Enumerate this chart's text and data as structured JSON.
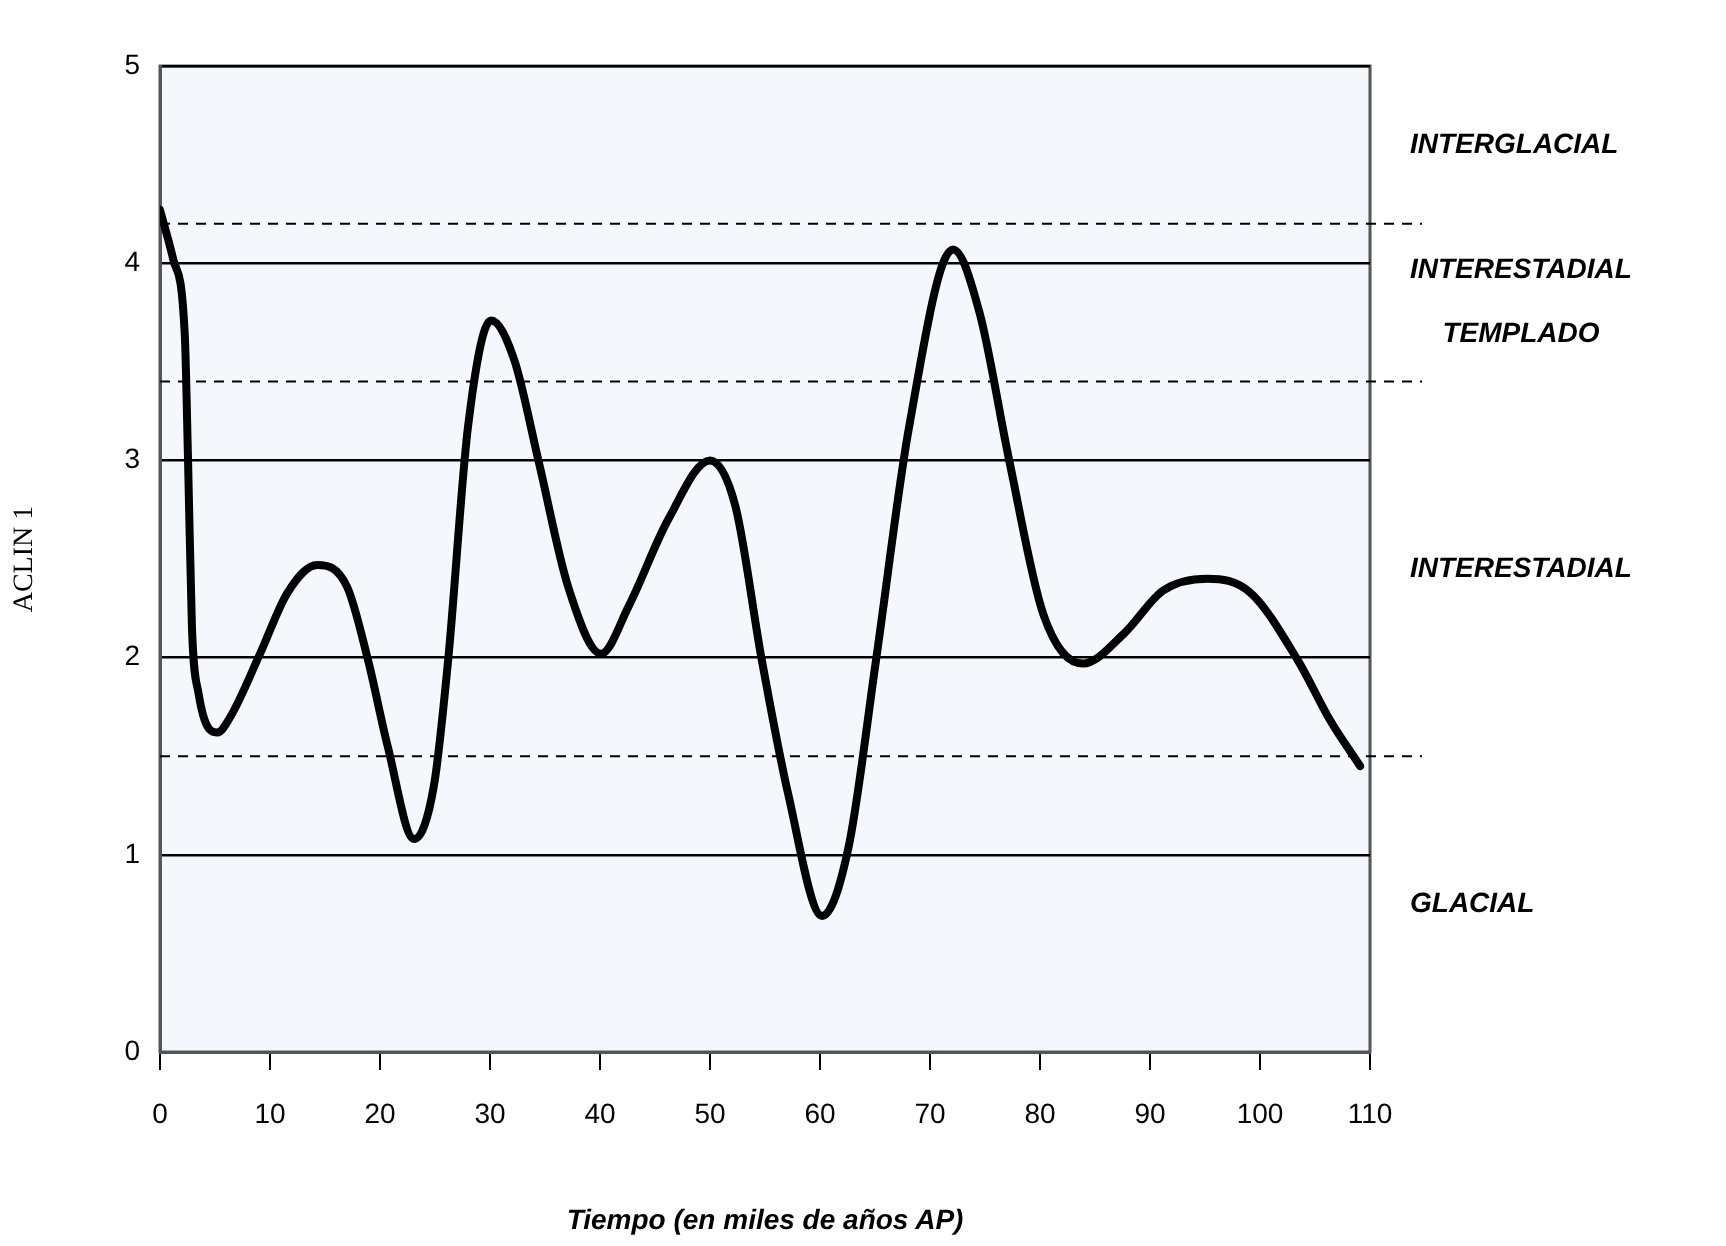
{
  "chart_data": {
    "type": "line",
    "xlabel": "Tiempo (en miles de años AP)",
    "ylabel": "ACLIN 1",
    "x": [
      0,
      1.2,
      2.25,
      2.55,
      2.9,
      3.5,
      5.2,
      6.4,
      9.1,
      11.6,
      14.3,
      17.0,
      18.9,
      20.7,
      23.1,
      24.9,
      26.2,
      28.0,
      30.1,
      32.2,
      34.4,
      37.1,
      40.1,
      42.6,
      46.2,
      50.0,
      52.3,
      54.7,
      57.1,
      60.2,
      62.6,
      65.1,
      68.1,
      72.1,
      74.5,
      77.2,
      80.3,
      83.9,
      87.6,
      91.2,
      95.2,
      99.1,
      103.4,
      106.4,
      109.1
    ],
    "values": [
      4.27,
      4.02,
      3.64,
      3.0,
      2.16,
      1.82,
      1.62,
      1.7,
      2.02,
      2.33,
      2.47,
      2.36,
      1.99,
      1.55,
      1.08,
      1.35,
      1.99,
      3.17,
      3.71,
      3.51,
      3.0,
      2.36,
      2.02,
      2.26,
      2.7,
      3.0,
      2.77,
      1.99,
      1.31,
      0.69,
      1.04,
      1.99,
      3.17,
      4.07,
      3.75,
      3.0,
      2.22,
      1.97,
      2.12,
      2.34,
      2.4,
      2.33,
      1.99,
      1.68,
      1.45
    ],
    "color": "#000000",
    "marker": "none",
    "line_style": "solid",
    "legend": false,
    "grid": "y",
    "xlim": [
      0,
      110
    ],
    "xticks": [
      0,
      10,
      20,
      30,
      40,
      50,
      60,
      70,
      80,
      90,
      100,
      110
    ],
    "ylim": [
      0,
      5
    ],
    "yticks": [
      0,
      1,
      2,
      3,
      4,
      5
    ],
    "ref_lines": [
      {
        "axis": "y",
        "value": 4.2,
        "line_style": "dashed"
      },
      {
        "axis": "y",
        "value": 3.4,
        "line_style": "dashed"
      },
      {
        "axis": "y",
        "value": 1.5,
        "line_style": "dashed"
      }
    ],
    "annotations": [
      "INTERGLACIAL",
      "INTERESTADIAL TEMPLADO",
      "INTERESTADIAL",
      "GLACIAL"
    ]
  }
}
